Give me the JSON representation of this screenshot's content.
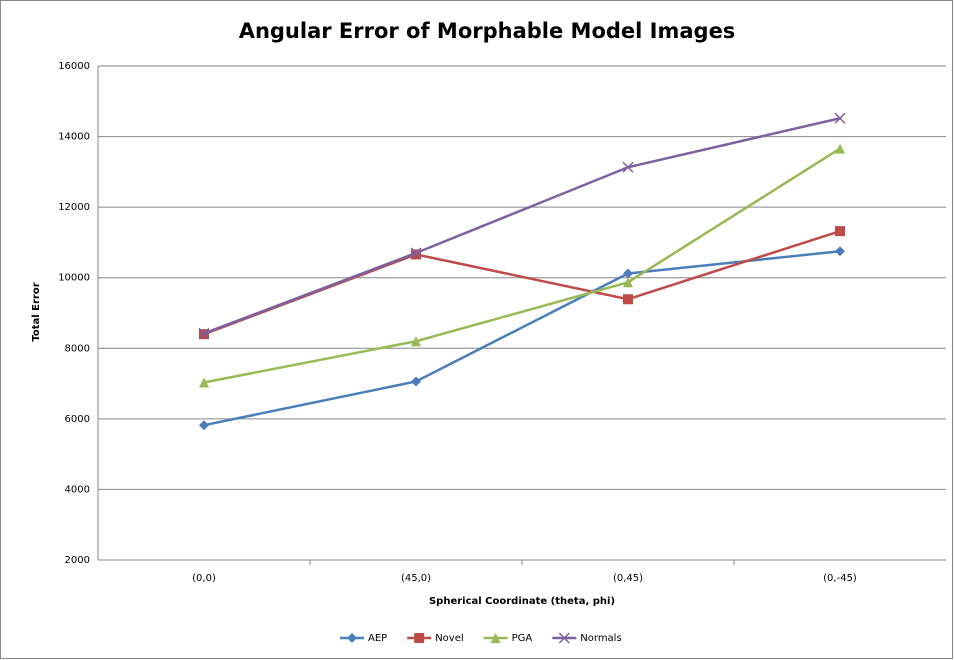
{
  "chart_data": {
    "type": "line",
    "title": "Angular Error of Morphable Model Images",
    "x_label": "Spherical Coordinate (theta, phi)",
    "y_label": "Total Error",
    "categories": [
      "(0,0)",
      "(45,0)",
      "(0,45)",
      "(0,-45)"
    ],
    "series": [
      {
        "name": "AEP",
        "color": "#4a7ebb",
        "marker": "diamond",
        "values": [
          5820,
          7060,
          10120,
          10750
        ]
      },
      {
        "name": "Novel",
        "color": "#be4b48",
        "marker": "square",
        "values": [
          8400,
          10660,
          9390,
          11320
        ]
      },
      {
        "name": "PGA",
        "color": "#98b954",
        "marker": "triangle",
        "values": [
          7030,
          8200,
          9870,
          13660
        ]
      },
      {
        "name": "Normals",
        "color": "#7d60a0",
        "marker": "x",
        "values": [
          8420,
          10700,
          13130,
          14520
        ]
      }
    ],
    "ylim": [
      2000,
      16000
    ],
    "yticks": [
      2000,
      4000,
      6000,
      8000,
      10000,
      12000,
      14000,
      16000
    ],
    "grid": true,
    "legend": "bottom"
  }
}
